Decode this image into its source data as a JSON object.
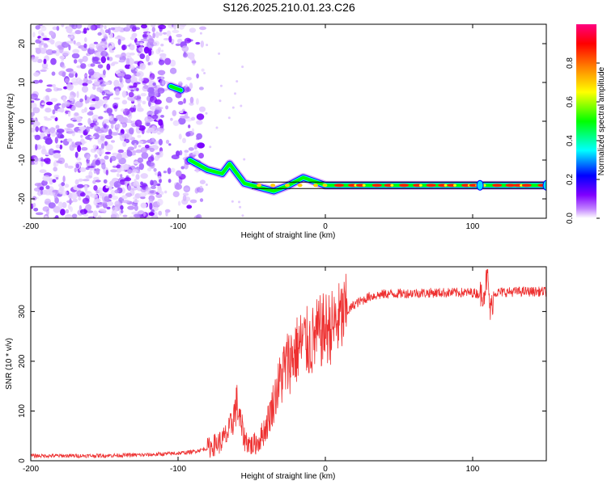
{
  "figure": {
    "title": "S126.2025.210.01.23.C26"
  },
  "chart_data": [
    {
      "type": "heatmap",
      "xlabel": "Height of straight line (km)",
      "ylabel": "Frequency (Hz)",
      "xlim": [
        -200,
        150
      ],
      "ylim": [
        -25,
        25
      ],
      "xticks": [
        -200,
        -100,
        0,
        100
      ],
      "yticks": [
        -20,
        -10,
        0,
        10,
        20
      ],
      "colorbar": {
        "label": "Normalized spectral amplitude",
        "range": [
          0,
          1
        ],
        "ticks": [
          "0.0",
          "0.2",
          "0.4",
          "0.6",
          "0.8"
        ],
        "colors": [
          "#ffffff",
          "#c080ff",
          "#8000ff",
          "#0000ff",
          "#00ffff",
          "#00ff00",
          "#ffff00",
          "#ff8000",
          "#ff0000",
          "#ff0080"
        ]
      },
      "features": {
        "noise_region_x": [
          -200,
          -95
        ],
        "spectral_line_points": [
          {
            "x": -105,
            "y": 9
          },
          {
            "x": -98,
            "y": 8
          },
          {
            "x": -92,
            "y": -10
          },
          {
            "x": -80,
            "y": -12.5
          },
          {
            "x": -70,
            "y": -13.5
          },
          {
            "x": -65,
            "y": -11
          },
          {
            "x": -55,
            "y": -16
          },
          {
            "x": -45,
            "y": -17
          },
          {
            "x": -35,
            "y": -18
          },
          {
            "x": -25,
            "y": -16.5
          },
          {
            "x": -15,
            "y": -14.5
          },
          {
            "x": 0,
            "y": -16.5
          },
          {
            "x": 150,
            "y": -16.5
          }
        ]
      }
    },
    {
      "type": "line",
      "xlabel": "Height of straight line (km)",
      "ylabel": "SNR (10 * v/v)",
      "xlim": [
        -200,
        150
      ],
      "ylim": [
        0,
        390
      ],
      "xticks": [
        -200,
        -100,
        0,
        100
      ],
      "yticks": [
        0,
        100,
        200,
        300
      ],
      "series": [
        {
          "color": "#ee3030",
          "points": [
            [
              -200,
              10
            ],
            [
              -180,
              10
            ],
            [
              -160,
              10
            ],
            [
              -140,
              11
            ],
            [
              -120,
              12
            ],
            [
              -100,
              15
            ],
            [
              -90,
              18
            ],
            [
              -80,
              25
            ],
            [
              -70,
              40
            ],
            [
              -65,
              60
            ],
            [
              -60,
              115
            ],
            [
              -58,
              80
            ],
            [
              -55,
              45
            ],
            [
              -50,
              30
            ],
            [
              -45,
              40
            ],
            [
              -40,
              70
            ],
            [
              -35,
              120
            ],
            [
              -30,
              170
            ],
            [
              -25,
              200
            ],
            [
              -20,
              220
            ],
            [
              -15,
              240
            ],
            [
              -10,
              235
            ],
            [
              -5,
              255
            ],
            [
              0,
              265
            ],
            [
              5,
              270
            ],
            [
              10,
              285
            ],
            [
              15,
              300
            ],
            [
              20,
              315
            ],
            [
              25,
              322
            ],
            [
              30,
              330
            ],
            [
              40,
              335
            ],
            [
              50,
              336
            ],
            [
              60,
              337
            ],
            [
              80,
              338
            ],
            [
              100,
              338
            ],
            [
              105,
              335
            ],
            [
              108,
              340
            ],
            [
              110,
              372
            ],
            [
              112,
              300
            ],
            [
              115,
              338
            ],
            [
              130,
              340
            ],
            [
              150,
              340
            ]
          ]
        }
      ]
    }
  ]
}
